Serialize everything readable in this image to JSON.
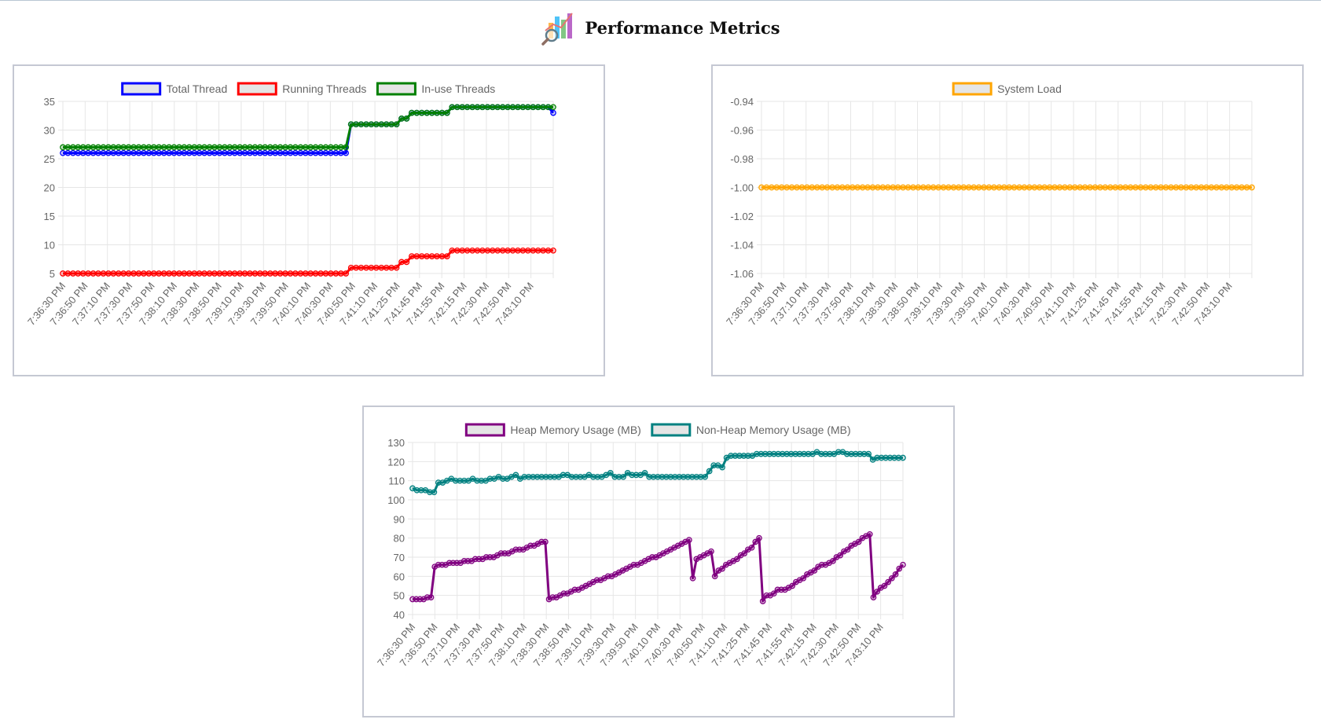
{
  "page": {
    "title": "Performance Metrics",
    "logo_icon": "chart-analytics-icon",
    "colors": {
      "panel_border": "#c5c8d3",
      "grid": "#e6e6e6",
      "text": "#666666"
    }
  },
  "chart_data": [
    {
      "id": "threads",
      "type": "line",
      "x_labels_shown": [
        "7:36:30 PM",
        "7:36:50 PM",
        "7:37:10 PM",
        "7:37:30 PM",
        "7:37:50 PM",
        "7:38:10 PM",
        "7:38:30 PM",
        "7:38:50 PM",
        "7:39:10 PM",
        "7:39:30 PM",
        "7:39:50 PM",
        "7:40:10 PM",
        "7:40:30 PM",
        "7:40:50 PM",
        "7:41:10 PM",
        "7:41:25 PM",
        "7:41:45 PM",
        "7:41:55 PM",
        "7:42:15 PM",
        "7:42:30 PM",
        "7:42:50 PM",
        "7:43:10 PM"
      ],
      "ylim": [
        5,
        35
      ],
      "y_ticks": [
        5,
        10,
        15,
        20,
        25,
        30,
        35
      ],
      "grid": true,
      "legend_position": "top",
      "series": [
        {
          "name": "Total Thread",
          "color": "#0000ff",
          "values": [
            26,
            26,
            26,
            26,
            26,
            26,
            26,
            26,
            26,
            26,
            26,
            26,
            26,
            26,
            26,
            26,
            26,
            26,
            26,
            26,
            26,
            26,
            26,
            26,
            26,
            26,
            26,
            26,
            26,
            26,
            26,
            26,
            26,
            26,
            26,
            26,
            26,
            26,
            26,
            26,
            26,
            26,
            26,
            26,
            26,
            26,
            26,
            26,
            26,
            26,
            26,
            26,
            26,
            26,
            26,
            26,
            26,
            31,
            31,
            31,
            31,
            31,
            31,
            31,
            31,
            31,
            31,
            32,
            32,
            33,
            33,
            33,
            33,
            33,
            33,
            33,
            33,
            34,
            34,
            34,
            34,
            34,
            34,
            34,
            34,
            34,
            34,
            34,
            34,
            34,
            34,
            34,
            34,
            34,
            34,
            34,
            34,
            33
          ]
        },
        {
          "name": "Running Threads",
          "color": "#ff0000",
          "values": [
            5,
            5,
            5,
            5,
            5,
            5,
            5,
            5,
            5,
            5,
            5,
            5,
            5,
            5,
            5,
            5,
            5,
            5,
            5,
            5,
            5,
            5,
            5,
            5,
            5,
            5,
            5,
            5,
            5,
            5,
            5,
            5,
            5,
            5,
            5,
            5,
            5,
            5,
            5,
            5,
            5,
            5,
            5,
            5,
            5,
            5,
            5,
            5,
            5,
            5,
            5,
            5,
            5,
            5,
            5,
            5,
            5,
            6,
            6,
            6,
            6,
            6,
            6,
            6,
            6,
            6,
            6,
            7,
            7,
            8,
            8,
            8,
            8,
            8,
            8,
            8,
            8,
            9,
            9,
            9,
            9,
            9,
            9,
            9,
            9,
            9,
            9,
            9,
            9,
            9,
            9,
            9,
            9,
            9,
            9,
            9,
            9,
            9
          ]
        },
        {
          "name": "In-use Threads",
          "color": "#008000",
          "values": [
            27,
            27,
            27,
            27,
            27,
            27,
            27,
            27,
            27,
            27,
            27,
            27,
            27,
            27,
            27,
            27,
            27,
            27,
            27,
            27,
            27,
            27,
            27,
            27,
            27,
            27,
            27,
            27,
            27,
            27,
            27,
            27,
            27,
            27,
            27,
            27,
            27,
            27,
            27,
            27,
            27,
            27,
            27,
            27,
            27,
            27,
            27,
            27,
            27,
            27,
            27,
            27,
            27,
            27,
            27,
            27,
            27,
            31,
            31,
            31,
            31,
            31,
            31,
            31,
            31,
            31,
            31,
            32,
            32,
            33,
            33,
            33,
            33,
            33,
            33,
            33,
            33,
            34,
            34,
            34,
            34,
            34,
            34,
            34,
            34,
            34,
            34,
            34,
            34,
            34,
            34,
            34,
            34,
            34,
            34,
            34,
            34,
            34
          ]
        }
      ]
    },
    {
      "id": "load",
      "type": "line",
      "x_labels_shown": [
        "7:36:30 PM",
        "7:36:50 PM",
        "7:37:10 PM",
        "7:37:30 PM",
        "7:37:50 PM",
        "7:38:10 PM",
        "7:38:30 PM",
        "7:38:50 PM",
        "7:39:10 PM",
        "7:39:30 PM",
        "7:39:50 PM",
        "7:40:10 PM",
        "7:40:30 PM",
        "7:40:50 PM",
        "7:41:10 PM",
        "7:41:25 PM",
        "7:41:45 PM",
        "7:41:55 PM",
        "7:42:15 PM",
        "7:42:30 PM",
        "7:42:50 PM",
        "7:43:10 PM"
      ],
      "ylim": [
        -1.06,
        -0.94
      ],
      "y_ticks": [
        "-0.94",
        "-0.96",
        "-0.98",
        "-1.00",
        "-1.02",
        "-1.04",
        "-1.06"
      ],
      "grid": true,
      "legend_position": "top",
      "series": [
        {
          "name": "System Load",
          "color": "#ffa500",
          "values": [
            -1,
            -1,
            -1,
            -1,
            -1,
            -1,
            -1,
            -1,
            -1,
            -1,
            -1,
            -1,
            -1,
            -1,
            -1,
            -1,
            -1,
            -1,
            -1,
            -1,
            -1,
            -1,
            -1,
            -1,
            -1,
            -1,
            -1,
            -1,
            -1,
            -1,
            -1,
            -1,
            -1,
            -1,
            -1,
            -1,
            -1,
            -1,
            -1,
            -1,
            -1,
            -1,
            -1,
            -1,
            -1,
            -1,
            -1,
            -1,
            -1,
            -1,
            -1,
            -1,
            -1,
            -1,
            -1,
            -1,
            -1,
            -1,
            -1,
            -1,
            -1,
            -1,
            -1,
            -1,
            -1,
            -1,
            -1,
            -1,
            -1,
            -1,
            -1,
            -1,
            -1,
            -1,
            -1,
            -1,
            -1,
            -1,
            -1,
            -1,
            -1,
            -1,
            -1,
            -1,
            -1,
            -1,
            -1,
            -1,
            -1,
            -1,
            -1,
            -1,
            -1,
            -1,
            -1,
            -1,
            -1,
            -1
          ]
        }
      ]
    },
    {
      "id": "memory",
      "type": "line",
      "x_labels_shown": [
        "7:36:30 PM",
        "7:36:50 PM",
        "7:37:10 PM",
        "7:37:30 PM",
        "7:37:50 PM",
        "7:38:10 PM",
        "7:38:30 PM",
        "7:38:50 PM",
        "7:39:10 PM",
        "7:39:30 PM",
        "7:39:50 PM",
        "7:40:10 PM",
        "7:40:30 PM",
        "7:40:50 PM",
        "7:41:10 PM",
        "7:41:25 PM",
        "7:41:45 PM",
        "7:41:55 PM",
        "7:42:15 PM",
        "7:42:30 PM",
        "7:42:50 PM",
        "7:43:10 PM"
      ],
      "ylim": [
        40,
        130
      ],
      "y_ticks": [
        40,
        50,
        60,
        70,
        80,
        90,
        100,
        110,
        120,
        130
      ],
      "grid": true,
      "legend_position": "top",
      "series": [
        {
          "name": "Heap Memory Usage (MB)",
          "color": "#800080",
          "values": [
            48,
            48,
            48,
            48,
            49,
            49,
            65,
            66,
            66,
            66,
            67,
            67,
            67,
            67,
            68,
            68,
            68,
            69,
            69,
            69,
            70,
            70,
            70,
            71,
            72,
            72,
            72,
            73,
            74,
            74,
            74,
            75,
            76,
            76,
            77,
            78,
            78,
            48,
            49,
            49,
            50,
            51,
            51,
            52,
            53,
            53,
            54,
            55,
            56,
            57,
            58,
            58,
            59,
            60,
            60,
            61,
            62,
            63,
            64,
            65,
            66,
            66,
            67,
            68,
            69,
            70,
            70,
            71,
            72,
            73,
            74,
            75,
            76,
            77,
            78,
            79,
            59,
            69,
            70,
            71,
            72,
            73,
            60,
            63,
            64,
            66,
            67,
            68,
            69,
            71,
            72,
            74,
            75,
            78,
            80,
            47,
            50,
            50,
            51,
            53,
            53,
            53,
            54,
            55,
            57,
            58,
            59,
            61,
            62,
            63,
            65,
            66,
            66,
            67,
            68,
            70,
            71,
            73,
            74,
            76,
            77,
            78,
            80,
            81,
            82,
            49,
            52,
            54,
            55,
            57,
            59,
            61,
            64,
            66
          ]
        },
        {
          "name": "Non-Heap Memory Usage (MB)",
          "color": "#008080",
          "values": [
            106,
            105,
            105,
            105,
            104,
            104,
            109,
            109,
            110,
            111,
            110,
            110,
            110,
            110,
            111,
            110,
            110,
            110,
            111,
            111,
            112,
            111,
            111,
            112,
            113,
            111,
            112,
            112,
            112,
            112,
            112,
            112,
            112,
            112,
            112,
            113,
            113,
            112,
            112,
            112,
            112,
            113,
            112,
            112,
            112,
            113,
            114,
            112,
            112,
            112,
            114,
            113,
            113,
            113,
            114,
            112,
            112,
            112,
            112,
            112,
            112,
            112,
            112,
            112,
            112,
            112,
            112,
            112,
            112,
            115,
            118,
            118,
            117,
            122,
            123,
            123,
            123,
            123,
            123,
            123,
            124,
            124,
            124,
            124,
            124,
            124,
            124,
            124,
            124,
            124,
            124,
            124,
            124,
            124,
            125,
            124,
            124,
            124,
            124,
            125,
            125,
            124,
            124,
            124,
            124,
            124,
            124,
            121,
            122,
            122,
            122,
            122,
            122,
            122,
            122
          ]
        }
      ]
    }
  ]
}
